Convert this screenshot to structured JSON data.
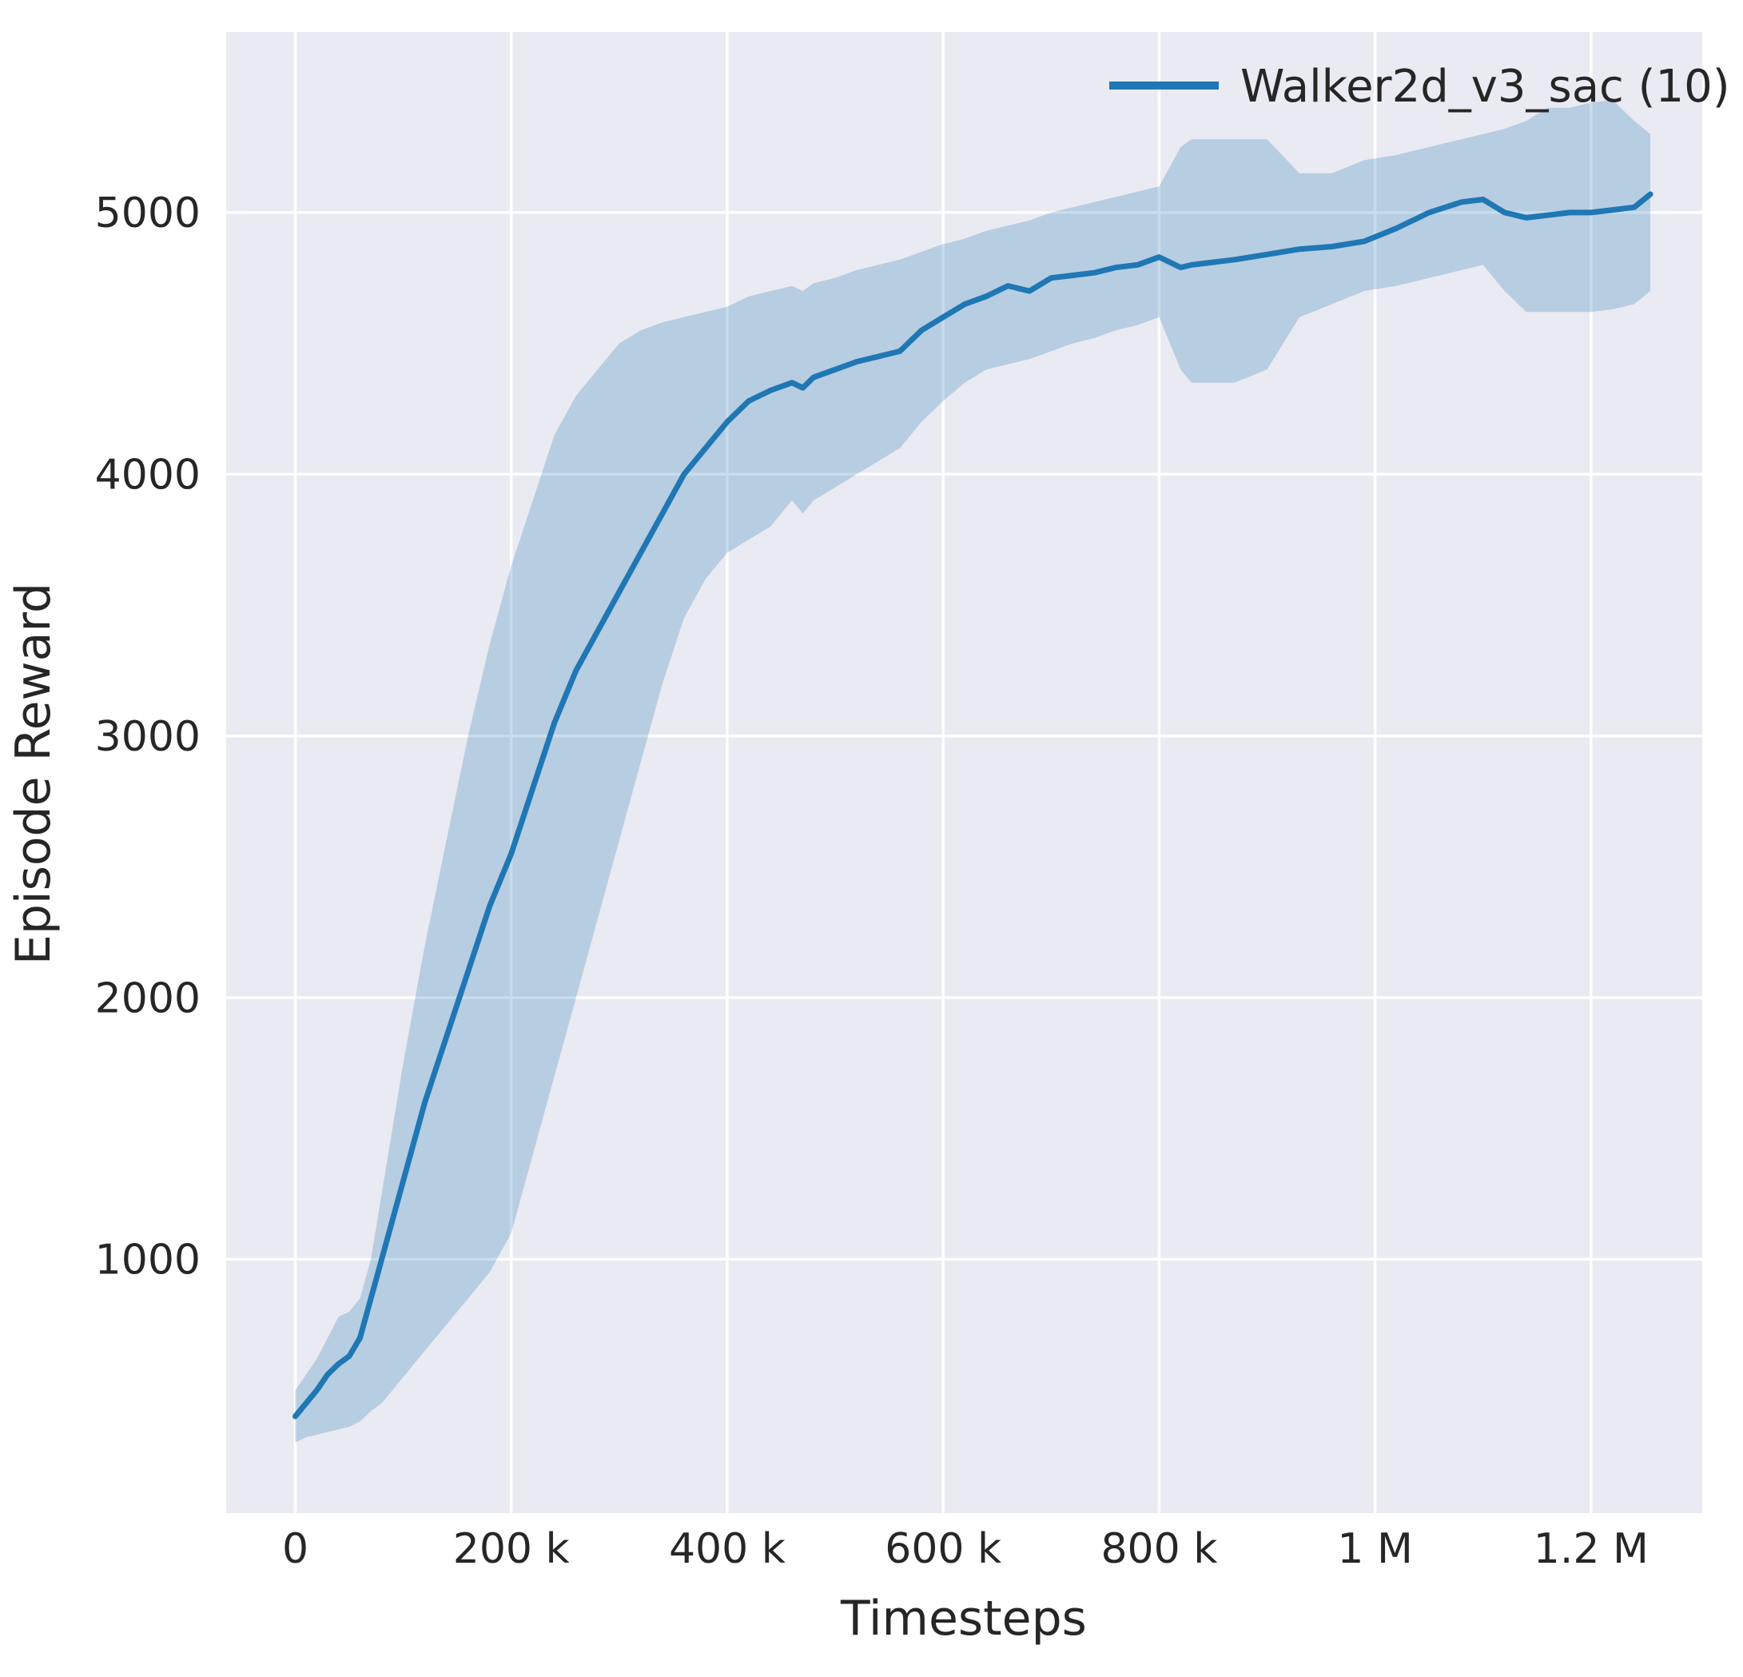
{
  "chart_data": {
    "type": "line",
    "title": "",
    "xlabel": "Timesteps",
    "ylabel": "Episode Reward",
    "grid": true,
    "legend_position": "upper right",
    "legend": [
      {
        "label": "Walker2d_v3_sac (10)",
        "color": "#1f77b4"
      }
    ],
    "xlim": [
      -64000,
      1303000
    ],
    "ylim": [
      30,
      5690
    ],
    "x_ticks": [
      {
        "value": 0,
        "label": "0"
      },
      {
        "value": 200000,
        "label": "200 k"
      },
      {
        "value": 400000,
        "label": "400 k"
      },
      {
        "value": 600000,
        "label": "600 k"
      },
      {
        "value": 800000,
        "label": "800 k"
      },
      {
        "value": 1000000,
        "label": "1 M"
      },
      {
        "value": 1200000,
        "label": "1.2 M"
      }
    ],
    "y_ticks": [
      {
        "value": 1000,
        "label": "1000"
      },
      {
        "value": 2000,
        "label": "2000"
      },
      {
        "value": 3000,
        "label": "3000"
      },
      {
        "value": 4000,
        "label": "4000"
      },
      {
        "value": 5000,
        "label": "5000"
      }
    ],
    "colors": {
      "axes_background": "#eaeaf2",
      "grid": "#ffffff",
      "series": "#1f77b4",
      "band_fill": "#1f77b4",
      "band_opacity": 0.25,
      "text": "#262626"
    },
    "series": [
      {
        "name": "Walker2d_v3_sac (10)",
        "color": "#1f77b4",
        "x": [
          0,
          10000,
          20000,
          30000,
          40000,
          50000,
          60000,
          70000,
          80000,
          90000,
          100000,
          120000,
          140000,
          160000,
          180000,
          200000,
          220000,
          240000,
          260000,
          280000,
          300000,
          320000,
          340000,
          360000,
          380000,
          400000,
          420000,
          440000,
          460000,
          470000,
          480000,
          500000,
          520000,
          540000,
          560000,
          580000,
          600000,
          620000,
          640000,
          660000,
          680000,
          700000,
          720000,
          740000,
          760000,
          780000,
          800000,
          820000,
          830000,
          850000,
          870000,
          900000,
          930000,
          960000,
          990000,
          1020000,
          1050000,
          1080000,
          1100000,
          1120000,
          1140000,
          1160000,
          1180000,
          1200000,
          1220000,
          1240000,
          1255000
        ],
        "mean": [
          400,
          450,
          500,
          560,
          600,
          630,
          700,
          850,
          1000,
          1150,
          1300,
          1600,
          1850,
          2100,
          2350,
          2550,
          2800,
          3050,
          3250,
          3400,
          3550,
          3700,
          3850,
          4000,
          4100,
          4200,
          4280,
          4320,
          4350,
          4330,
          4370,
          4400,
          4430,
          4450,
          4470,
          4550,
          4600,
          4650,
          4680,
          4720,
          4700,
          4750,
          4760,
          4770,
          4790,
          4800,
          4830,
          4790,
          4800,
          4810,
          4820,
          4840,
          4860,
          4870,
          4890,
          4940,
          5000,
          5040,
          5050,
          5000,
          4980,
          4990,
          5000,
          5000,
          5010,
          5020,
          5070
        ],
        "band_lower": [
          300,
          320,
          330,
          340,
          350,
          360,
          380,
          420,
          450,
          500,
          550,
          650,
          750,
          850,
          950,
          1100,
          1400,
          1700,
          2000,
          2300,
          2600,
          2900,
          3200,
          3450,
          3600,
          3700,
          3750,
          3800,
          3900,
          3850,
          3900,
          3950,
          4000,
          4050,
          4100,
          4200,
          4280,
          4350,
          4400,
          4420,
          4440,
          4470,
          4500,
          4520,
          4550,
          4570,
          4600,
          4400,
          4350,
          4350,
          4350,
          4400,
          4600,
          4650,
          4700,
          4720,
          4750,
          4780,
          4800,
          4700,
          4620,
          4620,
          4620,
          4620,
          4630,
          4650,
          4700
        ],
        "band_upper": [
          500,
          560,
          620,
          700,
          780,
          800,
          850,
          1000,
          1250,
          1500,
          1750,
          2200,
          2600,
          3000,
          3350,
          3650,
          3900,
          4150,
          4300,
          4400,
          4500,
          4550,
          4580,
          4600,
          4620,
          4640,
          4680,
          4700,
          4720,
          4700,
          4730,
          4750,
          4780,
          4800,
          4820,
          4850,
          4880,
          4900,
          4930,
          4950,
          4970,
          5000,
          5020,
          5040,
          5060,
          5080,
          5100,
          5250,
          5280,
          5280,
          5280,
          5280,
          5150,
          5150,
          5200,
          5220,
          5250,
          5280,
          5300,
          5320,
          5350,
          5400,
          5400,
          5420,
          5430,
          5350,
          5300
        ]
      }
    ]
  }
}
